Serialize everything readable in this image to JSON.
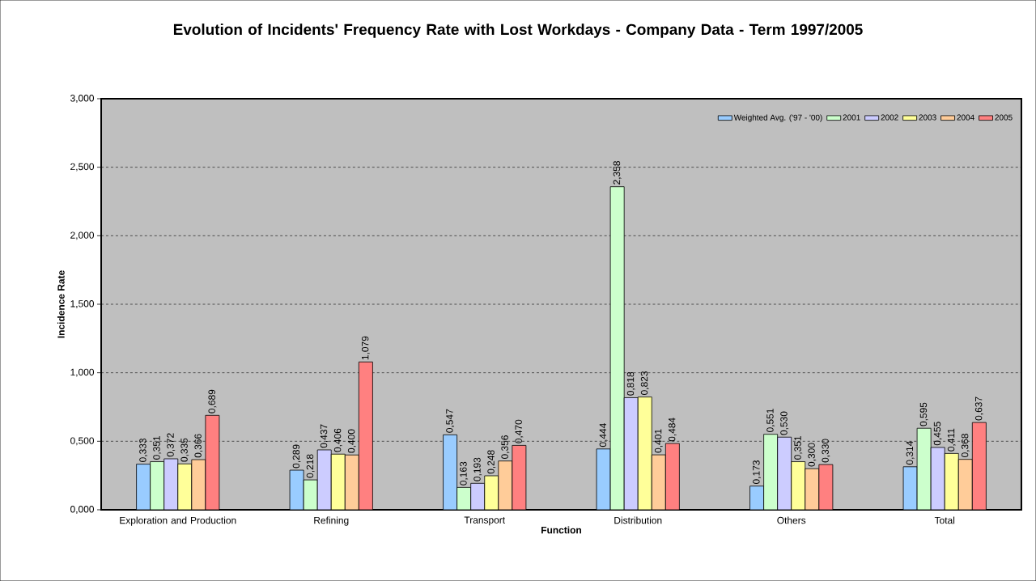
{
  "chart_data": {
    "type": "bar",
    "title": "Evolution of Incidents' Frequency Rate with Lost Workdays - Company Data - Term 1997/2005",
    "xlabel": "Function",
    "ylabel": "Incidence Rate",
    "categories": [
      "Exploration and Production",
      "Refining",
      "Transport",
      "Distribution",
      "Others",
      "Total"
    ],
    "series": [
      {
        "name": "Weighted Avg. ('97 - '00)",
        "color": "#99ccff",
        "values": [
          0.333,
          0.289,
          0.547,
          0.444,
          0.173,
          0.314
        ],
        "value_labels": [
          "0,333",
          "0,289",
          "0,547",
          "0,444",
          "0,173",
          "0,314"
        ]
      },
      {
        "name": "2001",
        "color": "#ccffcc",
        "values": [
          0.351,
          0.218,
          0.163,
          2.358,
          0.551,
          0.595
        ],
        "value_labels": [
          "0,351",
          "0,218",
          "0,163",
          "2,358",
          "0,551",
          "0,595"
        ]
      },
      {
        "name": "2002",
        "color": "#ccccff",
        "values": [
          0.372,
          0.437,
          0.193,
          0.818,
          0.53,
          0.455
        ],
        "value_labels": [
          "0,372",
          "0,437",
          "0,193",
          "0,818",
          "0,530",
          "0,455"
        ]
      },
      {
        "name": "2003",
        "color": "#ffff99",
        "values": [
          0.335,
          0.406,
          0.248,
          0.823,
          0.351,
          0.411
        ],
        "value_labels": [
          "0,335",
          "0,406",
          "0,248",
          "0,823",
          "0,351",
          "0,411"
        ]
      },
      {
        "name": "2004",
        "color": "#ffcc99",
        "values": [
          0.366,
          0.4,
          0.356,
          0.401,
          0.3,
          0.368
        ],
        "value_labels": [
          "0,366",
          "0,400",
          "0,356",
          "0,401",
          "0,300",
          "0,368"
        ]
      },
      {
        "name": "2005",
        "color": "#ff8080",
        "values": [
          0.689,
          1.079,
          0.47,
          0.484,
          0.33,
          0.637
        ],
        "value_labels": [
          "0,689",
          "1,079",
          "0,470",
          "0,484",
          "0,330",
          "0,637"
        ]
      }
    ],
    "ylim": [
      0,
      3
    ],
    "yticks": [
      {
        "value": 0,
        "label": "0,000"
      },
      {
        "value": 0.5,
        "label": "0,500"
      },
      {
        "value": 1,
        "label": "1,000"
      },
      {
        "value": 1.5,
        "label": "1,500"
      },
      {
        "value": 2,
        "label": "2,000"
      },
      {
        "value": 2.5,
        "label": "2,500"
      },
      {
        "value": 3,
        "label": "3,000"
      }
    ],
    "grid": "y",
    "legend": "top right"
  }
}
